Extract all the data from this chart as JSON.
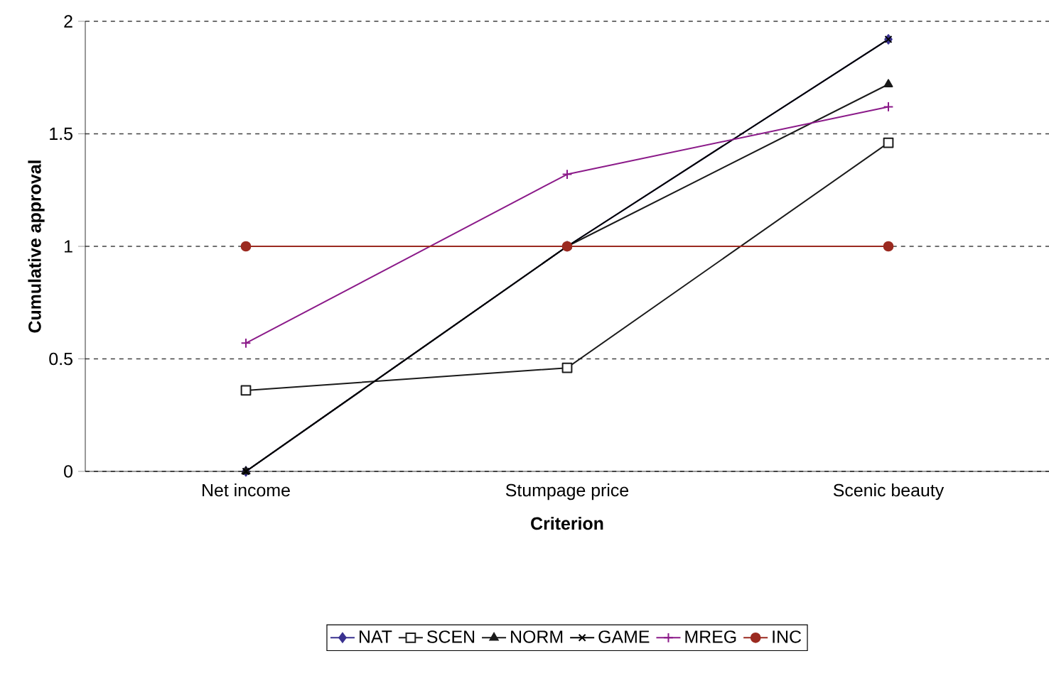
{
  "chart_data": {
    "type": "line",
    "xlabel": "Criterion",
    "ylabel": "Cumulative approval",
    "categories": [
      "Net income",
      "Stumpage price",
      "Scenic beauty"
    ],
    "series": [
      {
        "name": "NAT",
        "color": "#3a3290",
        "marker": "diamond",
        "values": [
          0,
          1,
          1.92
        ]
      },
      {
        "name": "SCEN",
        "color": "#1a1a1a",
        "marker": "square",
        "values": [
          0.36,
          0.46,
          1.46
        ]
      },
      {
        "name": "NORM",
        "color": "#1a1a1a",
        "marker": "triangle",
        "values": [
          0,
          1,
          1.72
        ]
      },
      {
        "name": "GAME",
        "color": "#000000",
        "marker": "cross",
        "values": [
          0,
          1,
          1.92
        ]
      },
      {
        "name": "MREG",
        "color": "#8b1a89",
        "marker": "plus",
        "values": [
          0.57,
          1.32,
          1.62
        ]
      },
      {
        "name": "INC",
        "color": "#9b2a20",
        "marker": "circle",
        "values": [
          1,
          1,
          1
        ]
      }
    ],
    "ylim": [
      0,
      2
    ],
    "yticks": [
      0,
      0.5,
      1,
      1.5,
      2
    ],
    "grid": "y",
    "legend": "bottom",
    "line_style": "solid"
  }
}
